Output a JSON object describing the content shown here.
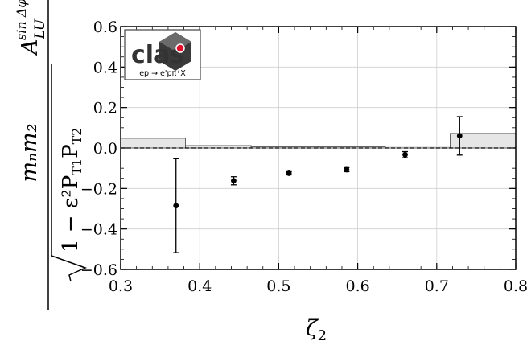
{
  "chart_data": {
    "type": "scatter",
    "xlabel": "ζ₂",
    "ylabel": "m_N m_2 / √(1 − ε² P_T1 P_T2) · A_LU^{sin Δφ}",
    "ylabel_parts": {
      "numerator": "mₙm₂",
      "radical": "1 − ε²P",
      "sub1": "T1",
      "mid": "P",
      "sub2": "T2",
      "a_symbol": "A",
      "a_sub": "LU",
      "a_sup": "sin Δφ"
    },
    "xlim": [
      0.3,
      0.8
    ],
    "ylim": [
      -0.6,
      0.6
    ],
    "xticks": [
      "0.3",
      "0.4",
      "0.5",
      "0.6",
      "0.7",
      "0.8"
    ],
    "yticks": [
      "0.6",
      "0.4",
      "0.2",
      "0.0",
      "−0.2",
      "−0.4",
      "−0.6"
    ],
    "grid": true,
    "zero_line": "dashed",
    "logo": {
      "text": "clas",
      "caption": "ep → e'pπ⁺X"
    },
    "points": [
      {
        "x": 0.37,
        "y": -0.285,
        "err": 0.232
      },
      {
        "x": 0.443,
        "y": -0.162,
        "err": 0.02
      },
      {
        "x": 0.513,
        "y": -0.125,
        "err": 0.008
      },
      {
        "x": 0.586,
        "y": -0.107,
        "err": 0.01
      },
      {
        "x": 0.66,
        "y": -0.033,
        "err": 0.015
      },
      {
        "x": 0.729,
        "y": 0.06,
        "err": 0.095
      }
    ],
    "systematic_bands": [
      {
        "x0": 0.3,
        "x1": 0.382,
        "height": 0.048
      },
      {
        "x0": 0.382,
        "x1": 0.465,
        "height": 0.012
      },
      {
        "x0": 0.465,
        "x1": 0.55,
        "height": 0.006
      },
      {
        "x0": 0.55,
        "x1": 0.635,
        "height": 0.006
      },
      {
        "x0": 0.635,
        "x1": 0.717,
        "height": 0.01
      },
      {
        "x0": 0.717,
        "x1": 0.8,
        "height": 0.072
      }
    ],
    "colors": {
      "points": "#000000",
      "band_fill": "#e6e6e6",
      "band_edge": "#555555",
      "grid": "#cfcfcf",
      "logo_dot": "#e0102a"
    }
  }
}
